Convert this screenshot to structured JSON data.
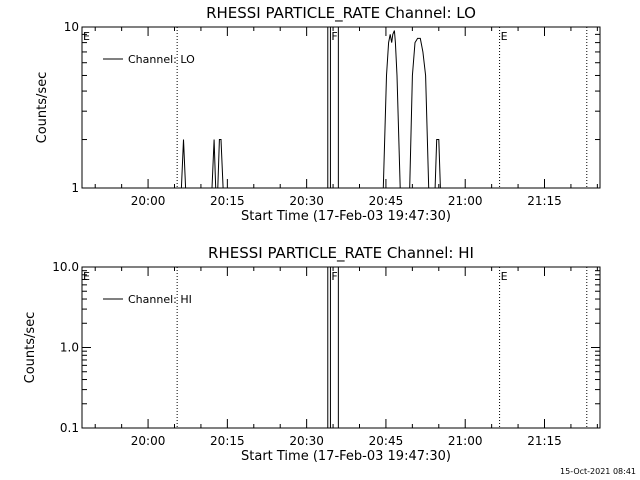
{
  "timestamp": "15-Oct-2021 08:41",
  "chart_data": [
    {
      "type": "line",
      "title": "RHESSI PARTICLE_RATE Channel: LO",
      "xlabel": "Start Time (17-Feb-03 19:47:30)",
      "ylabel": "Counts/sec",
      "yscale": "log",
      "ylim": [
        1,
        10
      ],
      "ytick_labels": [
        "1",
        "10"
      ],
      "xlim_min": [
        0,
        98
      ],
      "xtick_labels": [
        "20:00",
        "20:15",
        "20:30",
        "20:45",
        "21:00",
        "21:15"
      ],
      "legend": {
        "placement": "top-left",
        "entries": [
          "Channel: LO"
        ]
      },
      "markers": [
        {
          "label": "E",
          "x_min": 0
        },
        {
          "label": "F",
          "x_min": 47
        },
        {
          "label": "E",
          "x_min": 79
        }
      ],
      "dotted_lines_min": [
        18,
        79,
        95.5
      ],
      "gap_lines_min": [
        46.5,
        47,
        48.5
      ],
      "series": [
        {
          "name": "Channel: LO",
          "points": [
            [
              18.8,
              1
            ],
            [
              19.2,
              2
            ],
            [
              19.6,
              1
            ],
            [
              24.6,
              1
            ],
            [
              25.0,
              2
            ],
            [
              25.3,
              1
            ],
            [
              25.7,
              1
            ],
            [
              26.0,
              2
            ],
            [
              26.3,
              2
            ],
            [
              26.7,
              1
            ],
            [
              57.0,
              1
            ],
            [
              57.6,
              5
            ],
            [
              58.0,
              8
            ],
            [
              58.3,
              9
            ],
            [
              58.6,
              8
            ],
            [
              58.8,
              9
            ],
            [
              59.1,
              9.5
            ],
            [
              59.3,
              8
            ],
            [
              59.6,
              5
            ],
            [
              60.2,
              1
            ],
            [
              62.0,
              1
            ],
            [
              62.5,
              5
            ],
            [
              63.0,
              8
            ],
            [
              63.5,
              8.5
            ],
            [
              64.0,
              8.5
            ],
            [
              64.5,
              7
            ],
            [
              65.0,
              5
            ],
            [
              65.6,
              1
            ],
            [
              66.8,
              1
            ],
            [
              67.1,
              2
            ],
            [
              67.5,
              2
            ],
            [
              67.8,
              1
            ]
          ]
        }
      ]
    },
    {
      "type": "line",
      "title": "RHESSI PARTICLE_RATE Channel: HI",
      "xlabel": "Start Time (17-Feb-03 19:47:30)",
      "ylabel": "Counts/sec",
      "yscale": "log",
      "ylim": [
        0.1,
        10
      ],
      "ytick_labels": [
        "0.1",
        "1.0",
        "10.0"
      ],
      "xlim_min": [
        0,
        98
      ],
      "xtick_labels": [
        "20:00",
        "20:15",
        "20:30",
        "20:45",
        "21:00",
        "21:15"
      ],
      "legend": {
        "placement": "top-left",
        "entries": [
          "Channel: HI"
        ]
      },
      "markers": [
        {
          "label": "E",
          "x_min": 0
        },
        {
          "label": "F",
          "x_min": 47
        },
        {
          "label": "E",
          "x_min": 79
        }
      ],
      "dotted_lines_min": [
        18,
        79,
        95.5
      ],
      "gap_lines_min": [
        46.5,
        47,
        48.5
      ],
      "series": [
        {
          "name": "Channel: HI",
          "points": []
        }
      ]
    }
  ]
}
